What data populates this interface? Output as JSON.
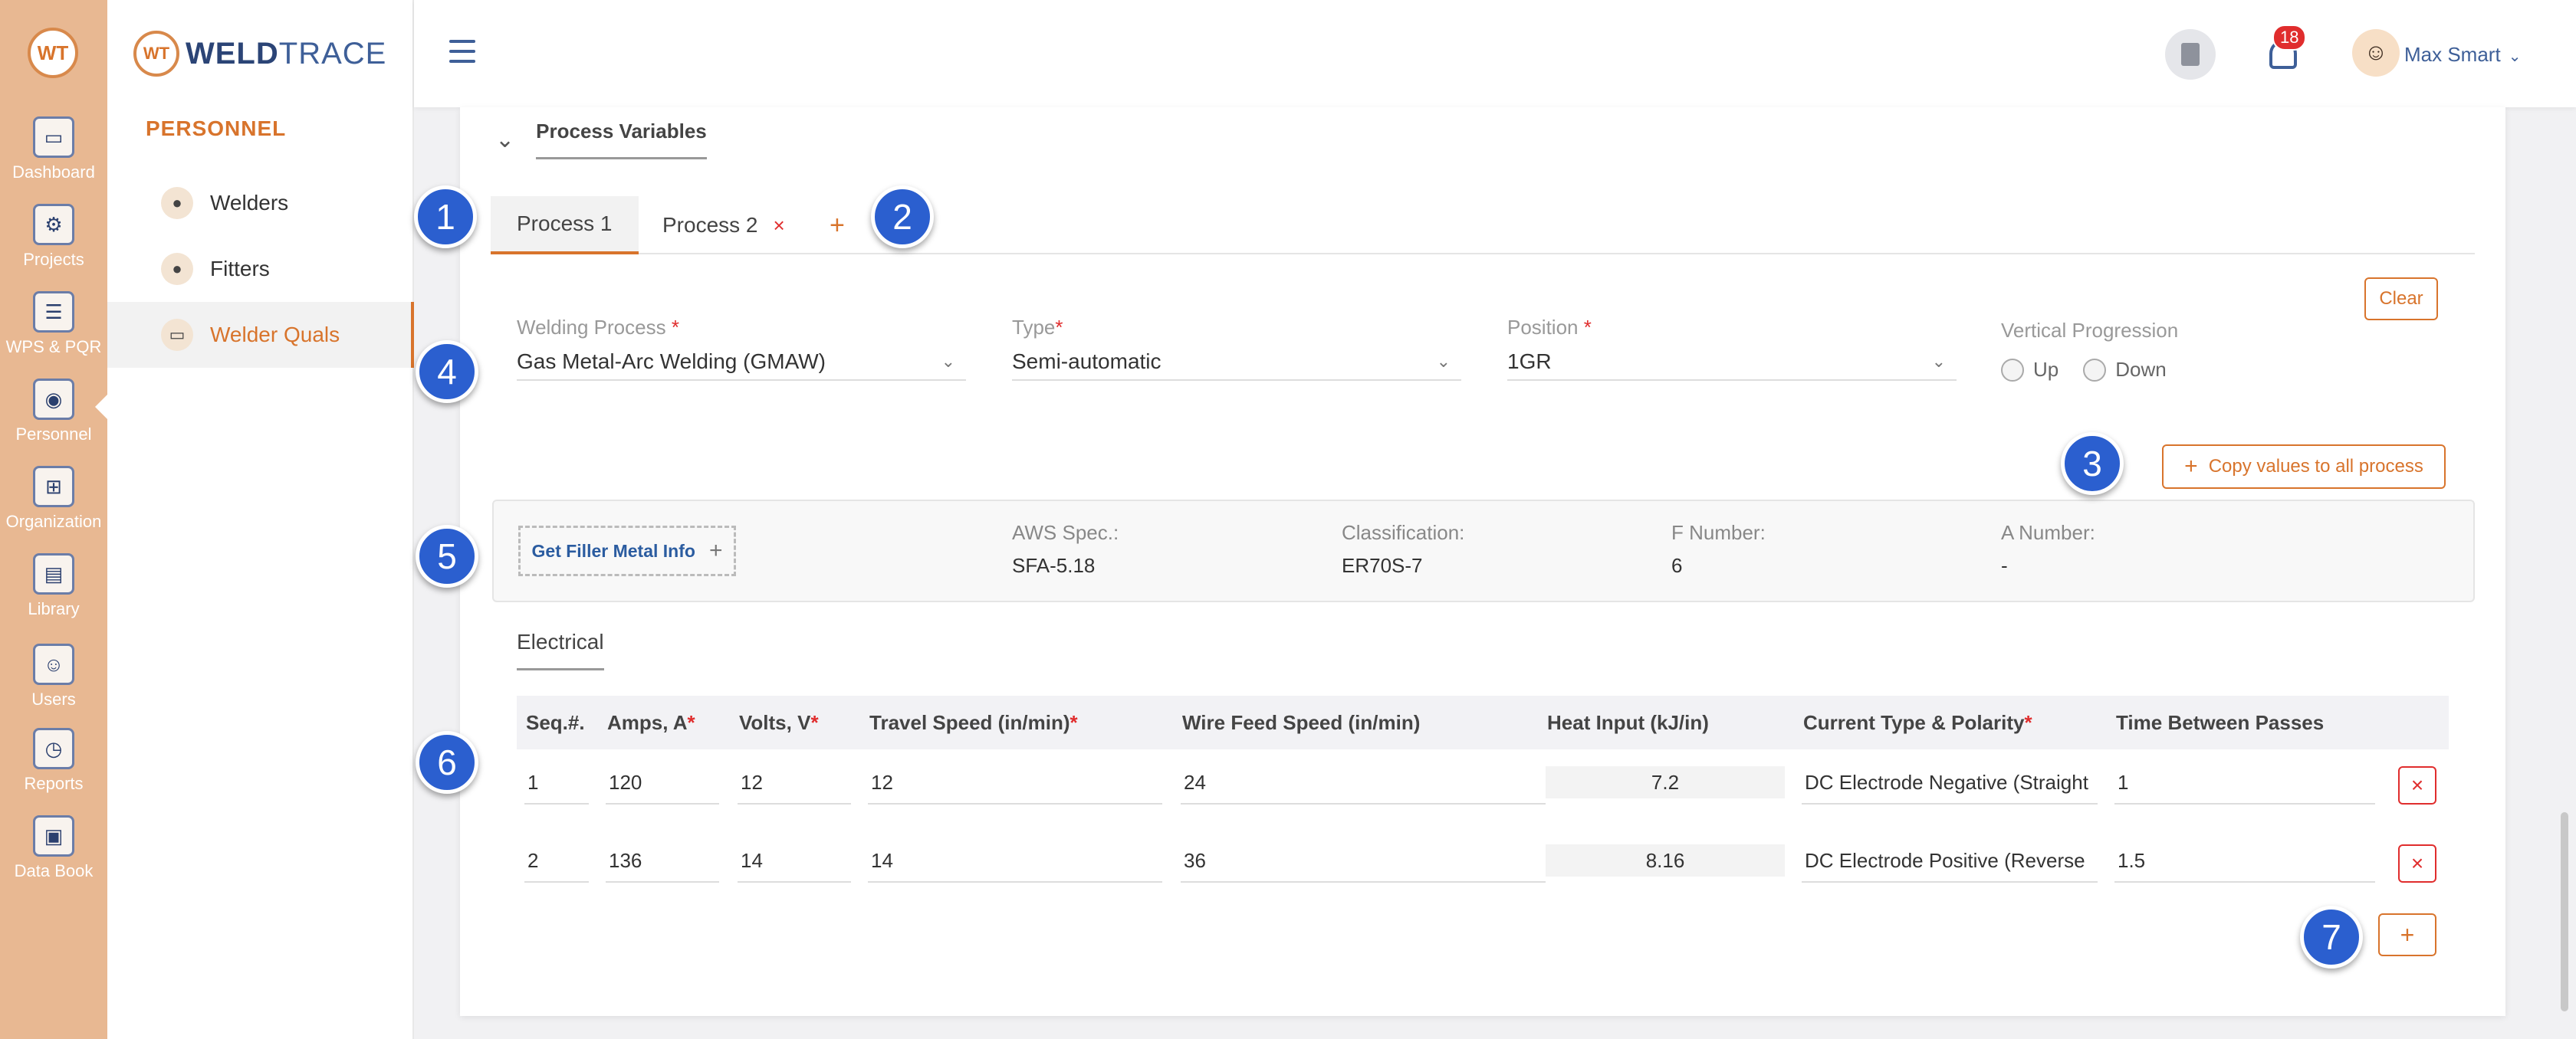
{
  "brand": {
    "badge": "WT",
    "name_part1": "WELD",
    "name_part2": "TRACE"
  },
  "rail": [
    {
      "label": "Dashboard",
      "icon": "monitor-icon"
    },
    {
      "label": "Projects",
      "icon": "folder-gear-icon"
    },
    {
      "label": "WPS & PQR",
      "icon": "clipboard-gear-icon"
    },
    {
      "label": "Personnel",
      "icon": "welder-mask-icon"
    },
    {
      "label": "Organization",
      "icon": "org-chart-icon"
    },
    {
      "label": "Library",
      "icon": "library-icon"
    },
    {
      "label": "Users",
      "icon": "users-icon"
    },
    {
      "label": "Reports",
      "icon": "report-clock-icon"
    },
    {
      "label": "Data Book",
      "icon": "data-book-icon"
    }
  ],
  "sidebar": {
    "heading": "PERSONNEL",
    "items": [
      {
        "label": "Welders",
        "icon": "welder-icon"
      },
      {
        "label": "Fitters",
        "icon": "fitter-icon"
      },
      {
        "label": "Welder Quals",
        "icon": "certificate-icon"
      }
    ]
  },
  "topbar": {
    "notification_count": "18",
    "user_name": "Max Smart"
  },
  "section": {
    "title": "Process Variables"
  },
  "tabs": [
    {
      "label": "Process 1"
    },
    {
      "label": "Process 2",
      "close": "×"
    }
  ],
  "tab_add": "+",
  "clear_label": "Clear",
  "fields": {
    "welding_process": {
      "label": "Welding Process ",
      "value": "Gas Metal-Arc Welding (GMAW)"
    },
    "type": {
      "label": "Type",
      "value": "Semi-automatic"
    },
    "position": {
      "label": "Position ",
      "value": "1GR"
    },
    "vertical": {
      "label": "Vertical Progression",
      "up": "Up",
      "down": "Down"
    }
  },
  "required_mark": "*",
  "copy_label": "Copy values to all process",
  "filler": {
    "button": "Get Filler Metal Info",
    "cols": [
      {
        "k": "AWS Spec.:",
        "v": "SFA-5.18"
      },
      {
        "k": "Classification:",
        "v": "ER70S-7"
      },
      {
        "k": "F Number:",
        "v": "6"
      },
      {
        "k": "A Number:",
        "v": "-"
      }
    ]
  },
  "electrical": {
    "tab": "Electrical",
    "columns": [
      "Seq.#.",
      "Amps, A",
      "Volts, V",
      "Travel Speed (in/min)",
      "Wire Feed Speed (in/min)",
      "Heat Input (kJ/in)",
      "Current Type & Polarity",
      "Time Between Passes"
    ],
    "rows": [
      [
        "1",
        "120",
        "12",
        "12",
        "24",
        "7.2",
        "DC Electrode Negative (Straight",
        "1"
      ],
      [
        "2",
        "136",
        "14",
        "14",
        "36",
        "8.16",
        "DC Electrode Positive (Reverse",
        "1.5"
      ]
    ]
  },
  "markers": [
    "1",
    "2",
    "3",
    "4",
    "5",
    "6",
    "7"
  ]
}
